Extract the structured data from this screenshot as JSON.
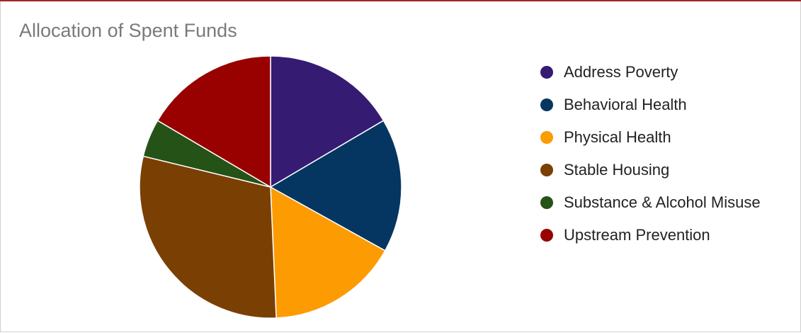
{
  "chart_data": {
    "type": "pie",
    "title": "Allocation of Spent Funds",
    "legend_position": "right",
    "slices": [
      {
        "name": "Address Poverty",
        "value": 16.6,
        "color": "#361b73"
      },
      {
        "name": "Behavioral Health",
        "value": 16.6,
        "color": "#053661"
      },
      {
        "name": "Physical Health",
        "value": 16.3,
        "color": "#fd9b02"
      },
      {
        "name": "Stable Housing",
        "value": 29.6,
        "color": "#7a3f02"
      },
      {
        "name": "Substance & Alcohol Misuse",
        "value": 4.7,
        "color": "#255216"
      },
      {
        "name": "Upstream Prevention",
        "value": 16.6,
        "color": "#990000"
      }
    ]
  }
}
